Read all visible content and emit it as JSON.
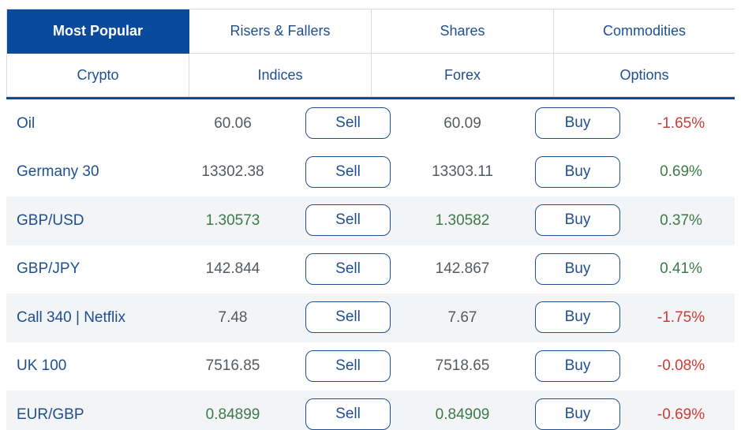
{
  "tabs": [
    {
      "label": "Most Popular",
      "active": true
    },
    {
      "label": "Risers & Fallers",
      "active": false
    },
    {
      "label": "Shares",
      "active": false
    },
    {
      "label": "Commodities",
      "active": false
    },
    {
      "label": "Crypto",
      "active": false
    },
    {
      "label": "Indices",
      "active": false
    },
    {
      "label": "Forex",
      "active": false
    },
    {
      "label": "Options",
      "active": false
    }
  ],
  "sell_label": "Sell",
  "buy_label": "Buy",
  "rows": [
    {
      "name": "Oil",
      "sell": "60.06",
      "buy": "60.09",
      "change": "-1.65%",
      "direction": "neg",
      "price_up": false
    },
    {
      "name": "Germany 30",
      "sell": "13302.38",
      "buy": "13303.11",
      "change": "0.69%",
      "direction": "pos",
      "price_up": false
    },
    {
      "name": "GBP/USD",
      "sell": "1.30573",
      "buy": "1.30582",
      "change": "0.37%",
      "direction": "pos",
      "price_up": true
    },
    {
      "name": "GBP/JPY",
      "sell": "142.844",
      "buy": "142.867",
      "change": "0.41%",
      "direction": "pos",
      "price_up": false
    },
    {
      "name": "Call 340 | Netflix",
      "sell": "7.48",
      "buy": "7.67",
      "change": "-1.75%",
      "direction": "neg",
      "price_up": false
    },
    {
      "name": "UK 100",
      "sell": "7516.85",
      "buy": "7518.65",
      "change": "-0.08%",
      "direction": "neg",
      "price_up": false
    },
    {
      "name": "EUR/GBP",
      "sell": "0.84899",
      "buy": "0.84909",
      "change": "-0.69%",
      "direction": "neg",
      "price_up": true
    }
  ],
  "colors": {
    "accent": "#0a4a9c",
    "link": "#1f4f8f",
    "negative": "#d03b35",
    "positive": "#3d7a4a"
  }
}
